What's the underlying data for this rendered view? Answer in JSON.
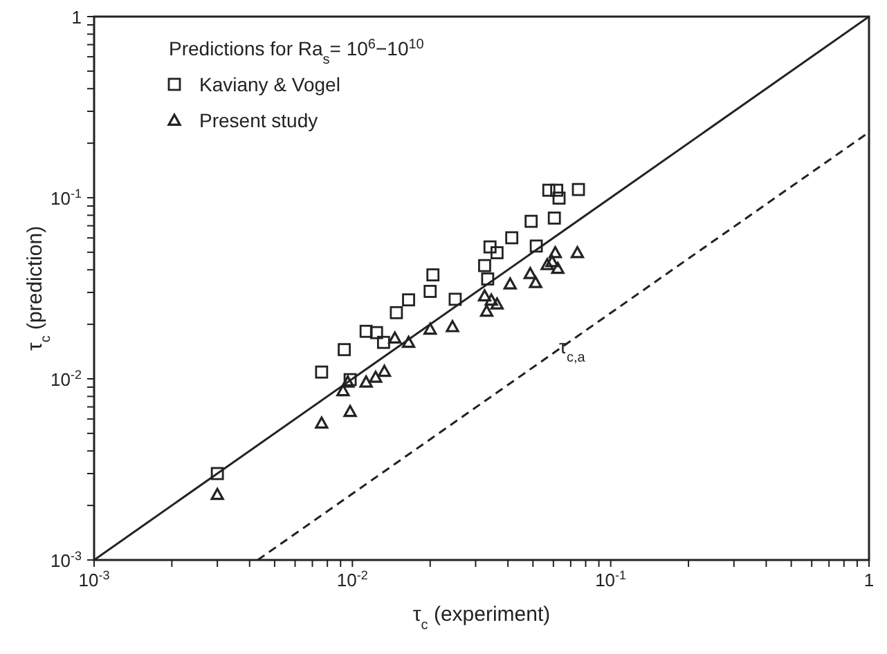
{
  "chart_data": {
    "type": "scatter",
    "xlabel": "τ$_{c}$ (experiment)",
    "ylabel": "τ$_{c}$ (prediction)",
    "legend_title": "Predictions for Ra$_{s}$= 10$^{6}$−10$^{10}$",
    "log": "xy",
    "legend": "top left",
    "xlim": [
      0.001,
      1
    ],
    "ylim": [
      0.001,
      1
    ],
    "xticks": [
      {
        "value": 0.001,
        "label": "10$^{-3}$"
      },
      {
        "value": 0.002,
        "label": null
      },
      {
        "value": 0.003,
        "label": null
      },
      {
        "value": 0.004,
        "label": null
      },
      {
        "value": 0.005,
        "label": null
      },
      {
        "value": 0.006,
        "label": null
      },
      {
        "value": 0.007,
        "label": null
      },
      {
        "value": 0.008,
        "label": null
      },
      {
        "value": 0.009,
        "label": null
      },
      {
        "value": 0.01,
        "label": "10$^{-2}$"
      },
      {
        "value": 0.02,
        "label": null
      },
      {
        "value": 0.03,
        "label": null
      },
      {
        "value": 0.04,
        "label": null
      },
      {
        "value": 0.05,
        "label": null
      },
      {
        "value": 0.06,
        "label": null
      },
      {
        "value": 0.07,
        "label": null
      },
      {
        "value": 0.08,
        "label": null
      },
      {
        "value": 0.09,
        "label": null
      },
      {
        "value": 0.1,
        "label": "10$^{-1}$"
      },
      {
        "value": 0.2,
        "label": null
      },
      {
        "value": 0.3,
        "label": null
      },
      {
        "value": 0.4,
        "label": null
      },
      {
        "value": 0.5,
        "label": null
      },
      {
        "value": 0.6,
        "label": null
      },
      {
        "value": 0.7,
        "label": null
      },
      {
        "value": 0.8,
        "label": null
      },
      {
        "value": 0.9,
        "label": null
      },
      1
    ],
    "yticks": [
      {
        "value": 0.001,
        "label": "10$^{-3}$"
      },
      {
        "value": 0.002,
        "label": null
      },
      {
        "value": 0.003,
        "label": null
      },
      {
        "value": 0.004,
        "label": null
      },
      {
        "value": 0.005,
        "label": null
      },
      {
        "value": 0.006,
        "label": null
      },
      {
        "value": 0.007,
        "label": null
      },
      {
        "value": 0.008,
        "label": null
      },
      {
        "value": 0.009,
        "label": null
      },
      {
        "value": 0.01,
        "label": "10$^{-2}$"
      },
      {
        "value": 0.02,
        "label": null
      },
      {
        "value": 0.03,
        "label": null
      },
      {
        "value": 0.04,
        "label": null
      },
      {
        "value": 0.05,
        "label": null
      },
      {
        "value": 0.06,
        "label": null
      },
      {
        "value": 0.07,
        "label": null
      },
      {
        "value": 0.08,
        "label": null
      },
      {
        "value": 0.09,
        "label": null
      },
      {
        "value": 0.1,
        "label": "10$^{-1}$"
      },
      {
        "value": 0.2,
        "label": null
      },
      {
        "value": 0.3,
        "label": null
      },
      {
        "value": 0.4,
        "label": null
      },
      {
        "value": 0.5,
        "label": null
      },
      {
        "value": 0.6,
        "label": null
      },
      {
        "value": 0.7,
        "label": null
      },
      {
        "value": 0.8,
        "label": null
      },
      {
        "value": 0.9,
        "label": null
      },
      1
    ],
    "series": [
      {
        "name": "Kaviany & Vogel",
        "marker": "square",
        "color": "#222222",
        "x": [
          0.003,
          0.0076,
          0.0093,
          0.0098,
          0.0113,
          0.0124,
          0.0132,
          0.0148,
          0.0165,
          0.02,
          0.0205,
          0.025,
          0.0325,
          0.0334,
          0.0341,
          0.0363,
          0.0414,
          0.0515,
          0.0492,
          0.0605,
          0.0576,
          0.0618,
          0.0631,
          0.075
        ],
        "values": [
          0.003,
          0.0109,
          0.0145,
          0.0099,
          0.0183,
          0.018,
          0.0159,
          0.0232,
          0.0273,
          0.0304,
          0.0375,
          0.0275,
          0.0422,
          0.0356,
          0.0535,
          0.0497,
          0.0601,
          0.0541,
          0.0741,
          0.0772,
          0.11,
          0.11,
          0.0995,
          0.111
        ]
      },
      {
        "name": "Present study",
        "marker": "triangle",
        "color": "#222222",
        "x": [
          0.003,
          0.0076,
          0.0098,
          0.0092,
          0.0096,
          0.0113,
          0.0123,
          0.0133,
          0.0146,
          0.0165,
          0.02,
          0.0244,
          0.0325,
          0.0331,
          0.0345,
          0.0363,
          0.0408,
          0.0488,
          0.0512,
          0.0568,
          0.0593,
          0.061,
          0.0624,
          0.0743
        ],
        "values": [
          0.0023,
          0.0057,
          0.0066,
          0.0086,
          0.0096,
          0.0096,
          0.0102,
          0.011,
          0.0168,
          0.0159,
          0.0188,
          0.0194,
          0.0287,
          0.0236,
          0.0272,
          0.0259,
          0.0334,
          0.0381,
          0.034,
          0.0427,
          0.0444,
          0.0497,
          0.0407,
          0.0497
        ]
      },
      {
        "type": "line",
        "line_style": "solid",
        "color": "#222222",
        "x": [
          0.001,
          1
        ],
        "values": [
          0.001,
          1
        ]
      },
      {
        "type": "line",
        "line_style": "dashed",
        "color": "#222222",
        "x": [
          0.0043,
          1
        ],
        "values": [
          0.001,
          0.23
        ]
      }
    ],
    "annotations": [
      "τ$_{c,a}$"
    ]
  }
}
